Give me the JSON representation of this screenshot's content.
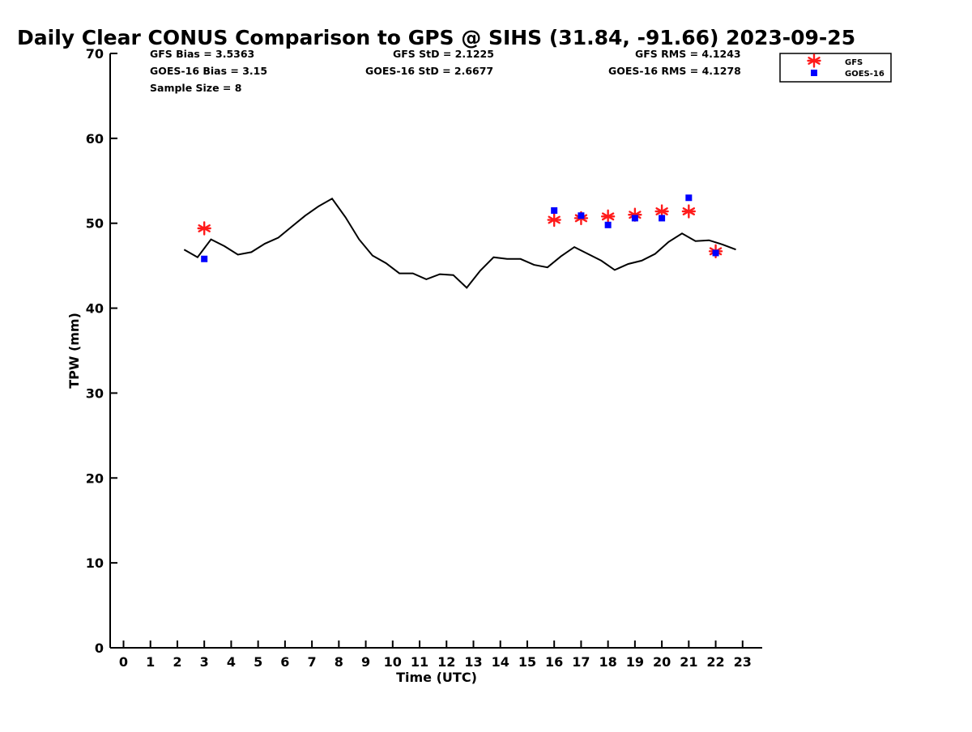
{
  "chart_data": {
    "type": "line",
    "title": "Daily Clear CONUS Comparison to GPS @ SIHS (31.84, -91.66) 2023-09-25",
    "xlabel": "Time (UTC)",
    "ylabel": "TPW (mm)",
    "xlim": [
      -0.5,
      23.7
    ],
    "ylim": [
      0,
      70
    ],
    "x_ticks": [
      0,
      1,
      2,
      3,
      4,
      5,
      6,
      7,
      8,
      9,
      10,
      11,
      12,
      13,
      14,
      15,
      16,
      17,
      18,
      19,
      20,
      21,
      22,
      23
    ],
    "y_ticks": [
      0,
      10,
      20,
      30,
      40,
      50,
      60,
      70
    ],
    "grid": false,
    "legend_position": "top-right",
    "stats": {
      "gfs_bias": "GFS Bias = 3.5363",
      "goes_bias": "GOES-16 Bias = 3.15",
      "sample_size": "Sample Size = 8",
      "gfs_std": "GFS StD = 2.1225",
      "goes_std": "GOES-16 StD = 2.6677",
      "gfs_rms": "GFS RMS = 4.1243",
      "goes_rms": "GOES-16 RMS = 4.1278"
    },
    "series": [
      {
        "kind": "line",
        "color": "#000000",
        "x": [
          2.25,
          2.75,
          3.25,
          3.75,
          4.25,
          4.75,
          5.25,
          5.75,
          6.25,
          6.75,
          7.25,
          7.75,
          8.25,
          8.75,
          9.25,
          9.75,
          10.25,
          10.75,
          11.25,
          11.75,
          12.25,
          12.75,
          13.25,
          13.75,
          14.25,
          14.75,
          15.25,
          15.75,
          16.25,
          16.75,
          17.25,
          17.75,
          18.25,
          18.75,
          19.25,
          19.75,
          20.25,
          20.75,
          21.25,
          21.75,
          22.25,
          22.75
        ],
        "y": [
          46.9,
          46.0,
          48.1,
          47.3,
          46.3,
          46.6,
          47.6,
          48.3,
          49.6,
          50.9,
          52.0,
          52.9,
          50.7,
          48.1,
          46.2,
          45.3,
          44.1,
          44.1,
          43.4,
          44.0,
          43.9,
          42.4,
          44.4,
          46.0,
          45.8,
          45.8,
          45.1,
          44.8,
          46.1,
          47.2,
          46.4,
          45.6,
          44.5,
          45.2,
          45.6,
          46.4,
          47.8,
          48.8,
          47.9,
          48.0,
          47.5,
          46.9
        ]
      },
      {
        "name": "GFS",
        "kind": "marker",
        "marker": "asterisk",
        "color": "#ff1a1a",
        "x": [
          3,
          16,
          17,
          18,
          19,
          20,
          21,
          22
        ],
        "y": [
          49.4,
          50.4,
          50.6,
          50.8,
          51.0,
          51.4,
          51.4,
          46.7
        ]
      },
      {
        "name": "GOES-16",
        "kind": "marker",
        "marker": "square",
        "color": "#0000ff",
        "x": [
          3,
          16,
          17,
          18,
          19,
          20,
          21,
          22
        ],
        "y": [
          45.8,
          51.5,
          50.9,
          49.8,
          50.6,
          50.6,
          53.0,
          46.5
        ]
      }
    ]
  }
}
